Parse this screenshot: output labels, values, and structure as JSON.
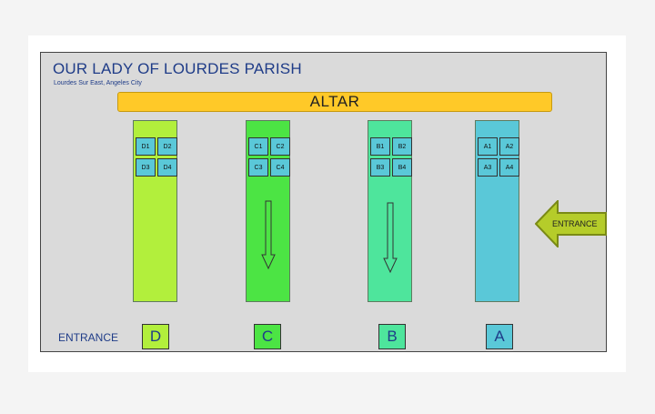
{
  "header": {
    "title": "OUR LADY OF LOURDES PARISH",
    "subtitle": "Lourdes Sur East, Angeles City"
  },
  "altar_label": "ALTAR",
  "columns": [
    {
      "id": "D",
      "color": "#b2ef3c",
      "seats": [
        "D1",
        "D2",
        "D3",
        "D4"
      ],
      "has_arrow": false
    },
    {
      "id": "C",
      "color": "#4ce444",
      "seats": [
        "C1",
        "C2",
        "C3",
        "C4"
      ],
      "has_arrow": true
    },
    {
      "id": "B",
      "color": "#4ee59c",
      "seats": [
        "B1",
        "B2",
        "B3",
        "B4"
      ],
      "has_arrow": true
    },
    {
      "id": "A",
      "color": "#5ac8d8",
      "seats": [
        "A1",
        "A2",
        "A3",
        "A4"
      ],
      "has_arrow": false
    }
  ],
  "seat_color": "#5ac8d8",
  "side_entrance": {
    "label": "ENTRANCE",
    "color": "#b5cc2a"
  },
  "bottom": {
    "entrance_label": "ENTRANCE",
    "doors": [
      {
        "label": "D",
        "color": "#b2ef3c"
      },
      {
        "label": "C",
        "color": "#4ce444"
      },
      {
        "label": "B",
        "color": "#4ee59c"
      },
      {
        "label": "A",
        "color": "#5ac8d8"
      }
    ]
  }
}
